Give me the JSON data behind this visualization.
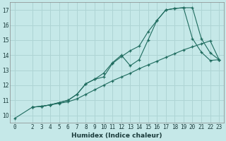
{
  "xlabel": "Humidex (Indice chaleur)",
  "background_color": "#c5e8e8",
  "grid_color": "#aed4d4",
  "line_color": "#1e6b5e",
  "xlim": [
    -0.5,
    23.5
  ],
  "ylim": [
    9.5,
    17.5
  ],
  "yticks": [
    10,
    11,
    12,
    13,
    14,
    15,
    16,
    17
  ],
  "xticks": [
    0,
    2,
    3,
    4,
    5,
    6,
    7,
    8,
    9,
    10,
    11,
    12,
    13,
    14,
    15,
    16,
    17,
    18,
    19,
    20,
    21,
    22,
    23
  ],
  "line1_x": [
    0,
    2,
    3,
    4,
    5,
    6,
    7,
    8,
    9,
    10,
    11,
    12,
    13,
    14,
    15,
    16,
    17,
    18,
    19,
    20,
    21,
    22,
    23
  ],
  "line1_y": [
    9.8,
    10.55,
    10.6,
    10.7,
    10.8,
    10.9,
    11.1,
    11.4,
    11.7,
    12.0,
    12.3,
    12.55,
    12.8,
    13.1,
    13.35,
    13.6,
    13.85,
    14.1,
    14.35,
    14.55,
    14.75,
    14.95,
    13.7
  ],
  "line2_x": [
    2,
    3,
    4,
    5,
    6,
    7,
    8,
    9,
    10,
    11,
    12,
    13,
    14,
    15,
    16,
    17,
    18,
    19,
    20,
    21,
    22,
    23
  ],
  "line2_y": [
    10.55,
    10.6,
    10.7,
    10.85,
    11.0,
    11.4,
    12.1,
    12.4,
    12.8,
    13.5,
    14.0,
    13.3,
    13.7,
    15.0,
    16.3,
    17.0,
    17.1,
    17.15,
    15.1,
    14.2,
    13.65,
    13.7
  ],
  "line3_x": [
    2,
    3,
    4,
    5,
    6,
    7,
    8,
    9,
    10,
    11,
    12,
    13,
    14,
    15,
    16,
    17,
    18,
    19,
    20,
    21,
    22,
    23
  ],
  "line3_y": [
    10.55,
    10.6,
    10.7,
    10.85,
    11.0,
    11.4,
    12.1,
    12.4,
    12.55,
    13.45,
    13.9,
    14.3,
    14.6,
    15.55,
    16.3,
    17.0,
    17.1,
    17.15,
    17.15,
    15.1,
    14.15,
    13.7
  ]
}
